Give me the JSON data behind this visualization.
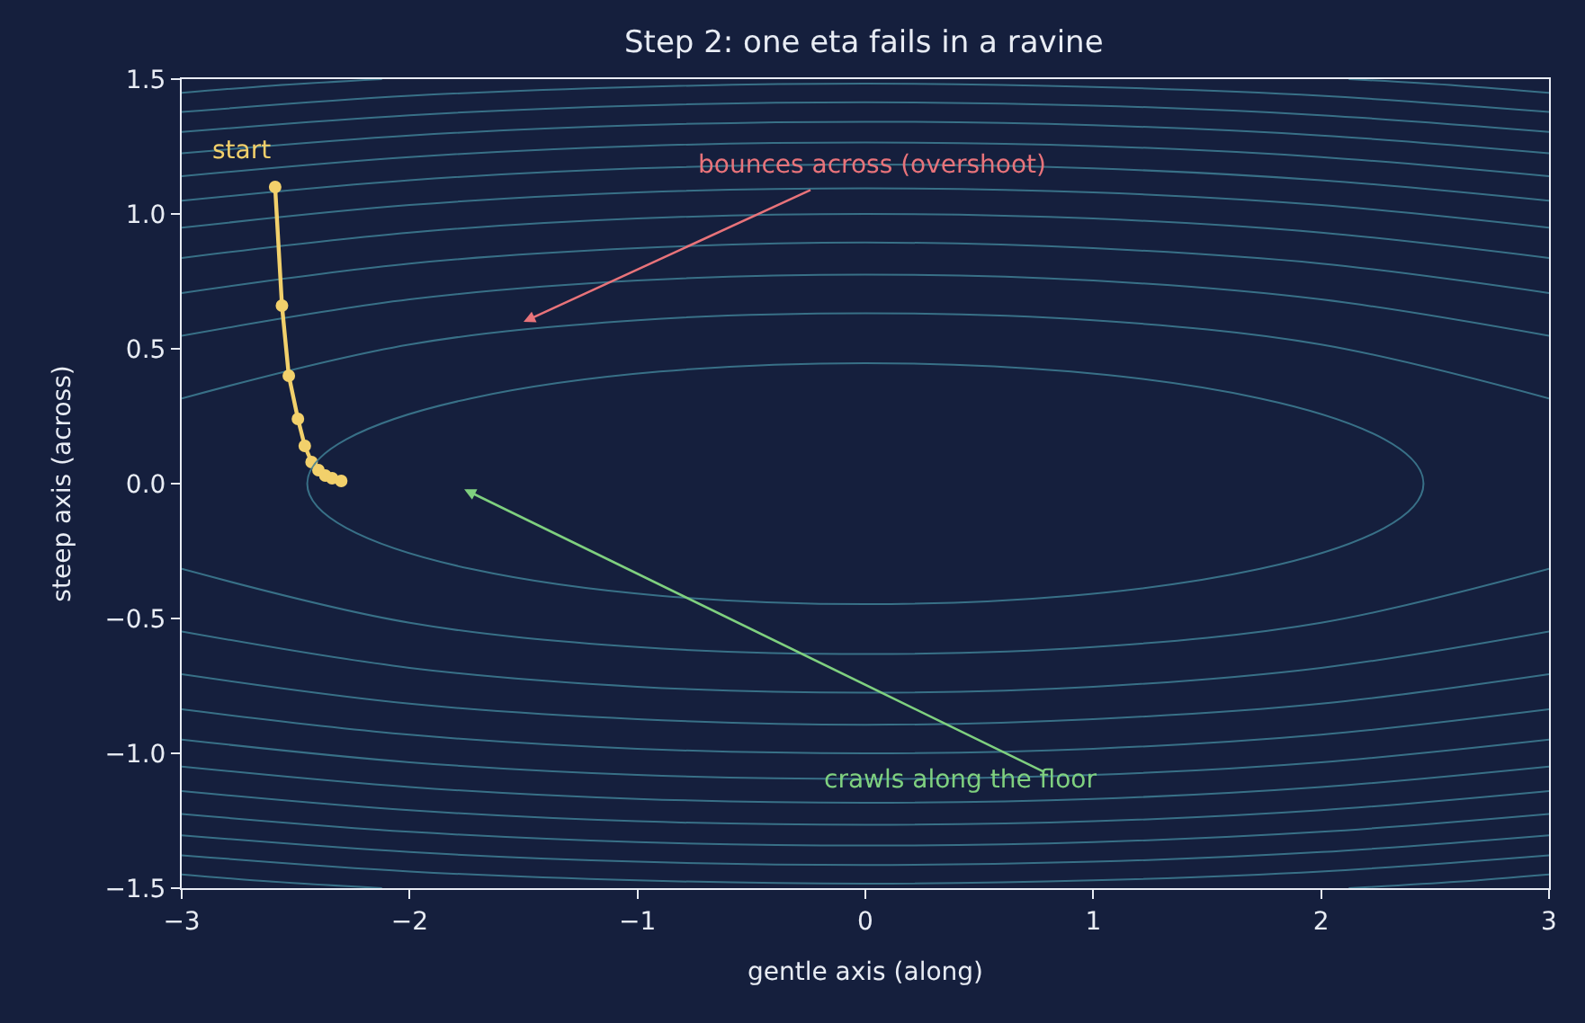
{
  "chart_data": {
    "type": "line",
    "title": "Step 2: one eta fails in a ravine",
    "xlabel": "gentle axis (along)",
    "ylabel": "steep axis (across)",
    "xlim": [
      -3,
      3
    ],
    "xticks": [
      {
        "value": -3,
        "label": "−3"
      },
      {
        "value": -2,
        "label": "−2"
      },
      {
        "value": -1,
        "label": "−1"
      },
      0,
      1,
      2,
      3
    ],
    "ylim": [
      -1.5,
      1.5
    ],
    "yticks": [
      {
        "value": -1.5,
        "label": "−1.5"
      },
      {
        "value": -1,
        "label": "−1.0"
      },
      {
        "value": -0.5,
        "label": "−0.5"
      },
      {
        "value": 0,
        "label": "0.0"
      },
      {
        "value": 0.5,
        "label": "0.5"
      },
      {
        "value": 1,
        "label": "1.0"
      },
      {
        "value": 1.5,
        "label": "1.5"
      }
    ],
    "grid": false,
    "series": [
      {
        "color": "#3f7f95",
        "marker": "none",
        "x": [
          -3,
          -2,
          -1,
          0,
          1,
          2,
          3
        ],
        "values": [
          0.316,
          0.516,
          0.606,
          0.632,
          0.606,
          0.516,
          0.316
        ]
      },
      {
        "color": "#3f7f95",
        "marker": "none",
        "x": [
          -3,
          -2,
          -1,
          0,
          1,
          2,
          3
        ],
        "values": [
          -0.316,
          -0.516,
          -0.606,
          -0.632,
          -0.606,
          -0.516,
          -0.316
        ]
      },
      {
        "color": "#3f7f95",
        "marker": "none",
        "x": [
          -3,
          -2,
          -1,
          0,
          1,
          2,
          3
        ],
        "values": [
          0.548,
          0.683,
          0.753,
          0.775,
          0.753,
          0.683,
          0.548
        ]
      },
      {
        "color": "#3f7f95",
        "marker": "none",
        "x": [
          -3,
          -2,
          -1,
          0,
          1,
          2,
          3
        ],
        "values": [
          -0.548,
          -0.683,
          -0.753,
          -0.775,
          -0.753,
          -0.683,
          -0.548
        ]
      },
      {
        "color": "#3f7f95",
        "marker": "none",
        "x": [
          -3,
          -2,
          -1,
          0,
          1,
          2,
          3
        ],
        "values": [
          0.707,
          0.816,
          0.873,
          0.894,
          0.873,
          0.816,
          0.707
        ]
      },
      {
        "color": "#3f7f95",
        "marker": "none",
        "x": [
          -3,
          -2,
          -1,
          0,
          1,
          2,
          3
        ],
        "values": [
          -0.707,
          -0.816,
          -0.873,
          -0.894,
          -0.873,
          -0.816,
          -0.707
        ]
      },
      {
        "color": "#3f7f95",
        "marker": "none",
        "x": [
          -3,
          -2,
          -1,
          0,
          1,
          2,
          3
        ],
        "values": [
          0.837,
          0.931,
          0.983,
          1.0,
          0.983,
          0.931,
          0.837
        ]
      },
      {
        "color": "#3f7f95",
        "marker": "none",
        "x": [
          -3,
          -2,
          -1,
          0,
          1,
          2,
          3
        ],
        "values": [
          -0.837,
          -0.931,
          -0.983,
          -1.0,
          -0.983,
          -0.931,
          -0.837
        ]
      },
      {
        "color": "#3f7f95",
        "marker": "none",
        "x": [
          -3,
          -2,
          -1,
          0,
          1,
          2,
          3
        ],
        "values": [
          0.949,
          1.033,
          1.08,
          1.095,
          1.08,
          1.033,
          0.949
        ]
      },
      {
        "color": "#3f7f95",
        "marker": "none",
        "x": [
          -3,
          -2,
          -1,
          0,
          1,
          2,
          3
        ],
        "values": [
          -0.949,
          -1.033,
          -1.08,
          -1.095,
          -1.08,
          -1.033,
          -0.949
        ]
      },
      {
        "color": "#3f7f95",
        "marker": "none",
        "x": [
          -3,
          -2,
          -1,
          0,
          1,
          2,
          3
        ],
        "values": [
          1.049,
          1.125,
          1.169,
          1.183,
          1.169,
          1.125,
          1.049
        ]
      },
      {
        "color": "#3f7f95",
        "marker": "none",
        "x": [
          -3,
          -2,
          -1,
          0,
          1,
          2,
          3
        ],
        "values": [
          -1.049,
          -1.125,
          -1.169,
          -1.183,
          -1.169,
          -1.125,
          -1.049
        ]
      },
      {
        "color": "#3f7f95",
        "marker": "none",
        "x": [
          -3,
          -2,
          -1,
          0,
          1,
          2,
          3
        ],
        "values": [
          1.14,
          1.211,
          1.252,
          1.265,
          1.252,
          1.211,
          1.14
        ]
      },
      {
        "color": "#3f7f95",
        "marker": "none",
        "x": [
          -3,
          -2,
          -1,
          0,
          1,
          2,
          3
        ],
        "values": [
          -1.14,
          -1.211,
          -1.252,
          -1.265,
          -1.252,
          -1.211,
          -1.14
        ]
      },
      {
        "color": "#3f7f95",
        "marker": "none",
        "x": [
          -3,
          -2,
          -1,
          0,
          1,
          2,
          3
        ],
        "values": [
          1.225,
          1.291,
          1.329,
          1.342,
          1.329,
          1.291,
          1.225
        ]
      },
      {
        "color": "#3f7f95",
        "marker": "none",
        "x": [
          -3,
          -2,
          -1,
          0,
          1,
          2,
          3
        ],
        "values": [
          -1.225,
          -1.291,
          -1.329,
          -1.342,
          -1.329,
          -1.291,
          -1.225
        ]
      },
      {
        "color": "#3f7f95",
        "marker": "none",
        "x": [
          -3,
          -2,
          -1,
          0,
          1,
          2,
          3
        ],
        "values": [
          1.304,
          1.366,
          1.402,
          1.414,
          1.402,
          1.366,
          1.304
        ]
      },
      {
        "color": "#3f7f95",
        "marker": "none",
        "x": [
          -3,
          -2,
          -1,
          0,
          1,
          2,
          3
        ],
        "values": [
          -1.304,
          -1.366,
          -1.402,
          -1.414,
          -1.402,
          -1.366,
          -1.304
        ]
      },
      {
        "color": "#3f7f95",
        "marker": "none",
        "x": [
          -3,
          -2,
          -1,
          0,
          1,
          2,
          3
        ],
        "values": [
          1.378,
          1.438,
          1.471,
          1.483,
          1.471,
          1.438,
          1.378
        ]
      },
      {
        "color": "#3f7f95",
        "marker": "none",
        "x": [
          -3,
          -2,
          -1,
          0,
          1,
          2,
          3
        ],
        "values": [
          -1.378,
          -1.438,
          -1.471,
          -1.483,
          -1.471,
          -1.438,
          -1.378
        ]
      },
      {
        "color": "#3f7f95",
        "marker": "none",
        "x": [
          -3,
          -2.6,
          -2.121
        ],
        "values": [
          1.449,
          1.476,
          1.5
        ]
      },
      {
        "color": "#3f7f95",
        "marker": "none",
        "x": [
          2.121,
          2.6,
          3
        ],
        "values": [
          1.5,
          1.476,
          1.449
        ]
      },
      {
        "color": "#3f7f95",
        "marker": "none",
        "x": [
          -3,
          -2.6,
          -2.121
        ],
        "values": [
          -1.449,
          -1.476,
          -1.5
        ]
      },
      {
        "color": "#3f7f95",
        "marker": "none",
        "x": [
          2.121,
          2.6,
          3
        ],
        "values": [
          -1.5,
          -1.476,
          -1.449
        ]
      },
      {
        "color": "#f2d06b",
        "marker": "circle",
        "x": [
          -2.59,
          -2.56,
          -2.53,
          -2.49,
          -2.46,
          -2.43,
          -2.4,
          -2.37,
          -2.34,
          -2.3
        ],
        "values": [
          1.1,
          0.66,
          0.4,
          0.24,
          0.14,
          0.08,
          0.05,
          0.03,
          0.02,
          0.01
        ]
      }
    ],
    "annotations": [
      {
        "text": "start",
        "x": -2.59,
        "y": 1.1
      },
      {
        "text": "bounces across (overshoot)",
        "x": -1.5,
        "y": 0.6
      },
      "crawls along the floor"
    ]
  }
}
